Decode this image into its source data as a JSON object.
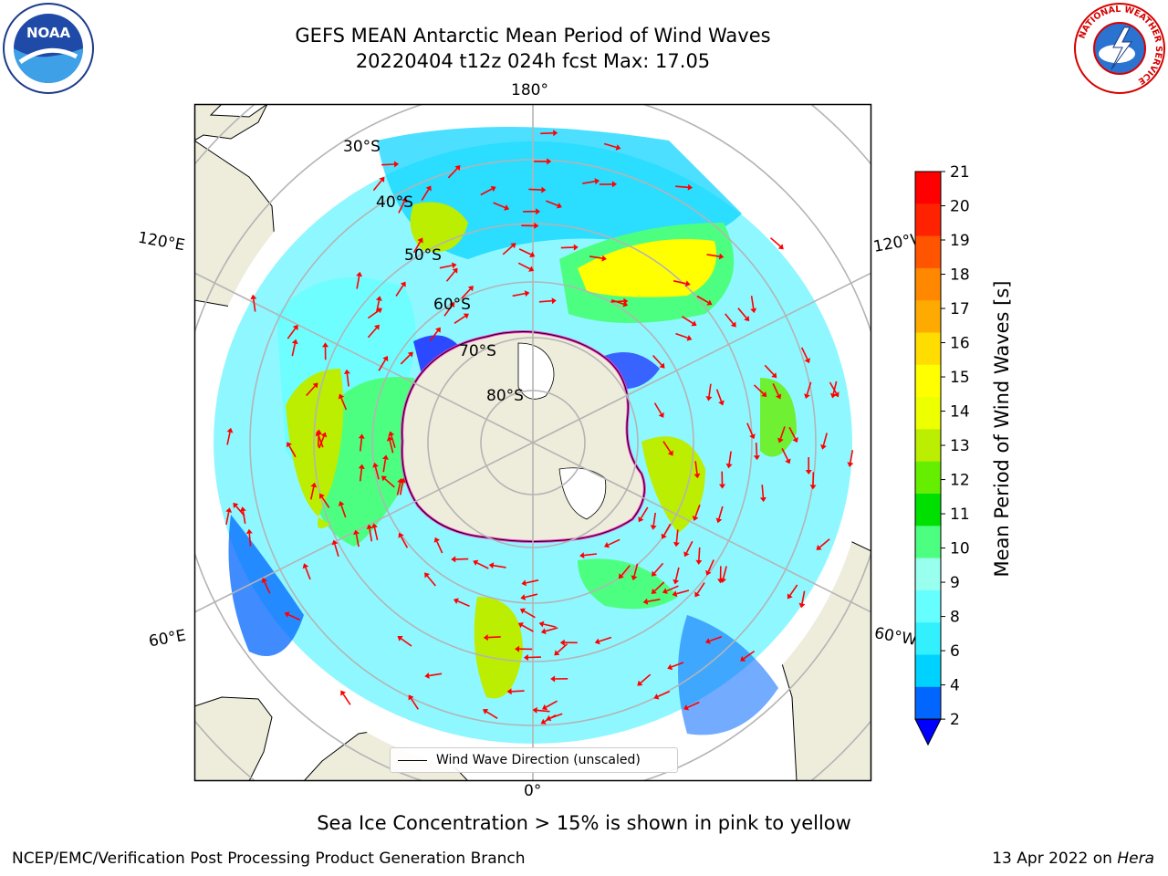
{
  "title": {
    "line1": "GEFS MEAN Antarctic Mean Period of Wind Waves",
    "line2": "20220404 t12z 024h fcst   Max: 17.05"
  },
  "logos": {
    "left": {
      "text": "NOAA",
      "icon": "noaa-logo-icon"
    },
    "right": {
      "text": "NATIONAL WEATHER SERVICE",
      "icon": "nws-logo-icon"
    }
  },
  "map": {
    "longitude_labels": {
      "top": "180°",
      "bottom": "0°",
      "upper_left": "120°E",
      "upper_right": "120°W",
      "lower_left": "60°E",
      "lower_right": "60°W"
    },
    "latitude_labels": [
      "30°S",
      "40°S",
      "50°S",
      "60°S",
      "70°S",
      "80°S"
    ],
    "legend": "Wind Wave Direction (unscaled)",
    "colors": {
      "land": "#eeecdb",
      "ocean": "#ffffff",
      "arrow": "#ff0000",
      "ice_edge": "#ff33cc",
      "graticule": "#b4b4b4"
    }
  },
  "colorbar": {
    "label": "Mean Period of Wind Waves [s]",
    "ticks": [
      "2",
      "4",
      "6",
      "8",
      "9",
      "10",
      "11",
      "12",
      "13",
      "14",
      "15",
      "16",
      "17",
      "18",
      "19",
      "20",
      "21"
    ],
    "colors": [
      "#0066ff",
      "#00d2ff",
      "#33f0ff",
      "#66ffff",
      "#99ffee",
      "#4dff80",
      "#00e000",
      "#66ee00",
      "#bbee00",
      "#eeff00",
      "#ffff00",
      "#ffdd00",
      "#ffaa00",
      "#ff8800",
      "#ff5500",
      "#ff2200",
      "#ff0000"
    ],
    "under_color": "#0000ff"
  },
  "note": "Sea Ice Concentration > 15% is shown in pink to yellow",
  "footer": {
    "left": "NCEP/EMC/Verification Post Processing Product Generation Branch",
    "right_prefix": "13 Apr 2022 on ",
    "right_italic": "Hera"
  }
}
